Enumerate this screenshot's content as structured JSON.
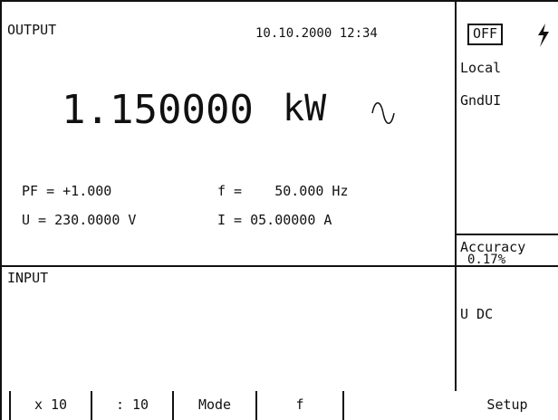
{
  "output": {
    "title": "OUTPUT",
    "datetime": "10.10.2000 12:34",
    "value": "1.150000",
    "unit": "kW",
    "pf": "PF = +1.000",
    "freq": "f =    50.000 Hz",
    "voltage": "U = 230.0000 V",
    "current": "I = 05.00000 A"
  },
  "status": {
    "state": "OFF",
    "mode": "Local",
    "ground": "GndUI",
    "accuracy_label": "Accuracy",
    "accuracy": "0.17%"
  },
  "input": {
    "title": "INPUT",
    "type": "U DC"
  },
  "softkeys": [
    "x 10",
    ": 10",
    "Mode",
    "f",
    "Setup"
  ]
}
